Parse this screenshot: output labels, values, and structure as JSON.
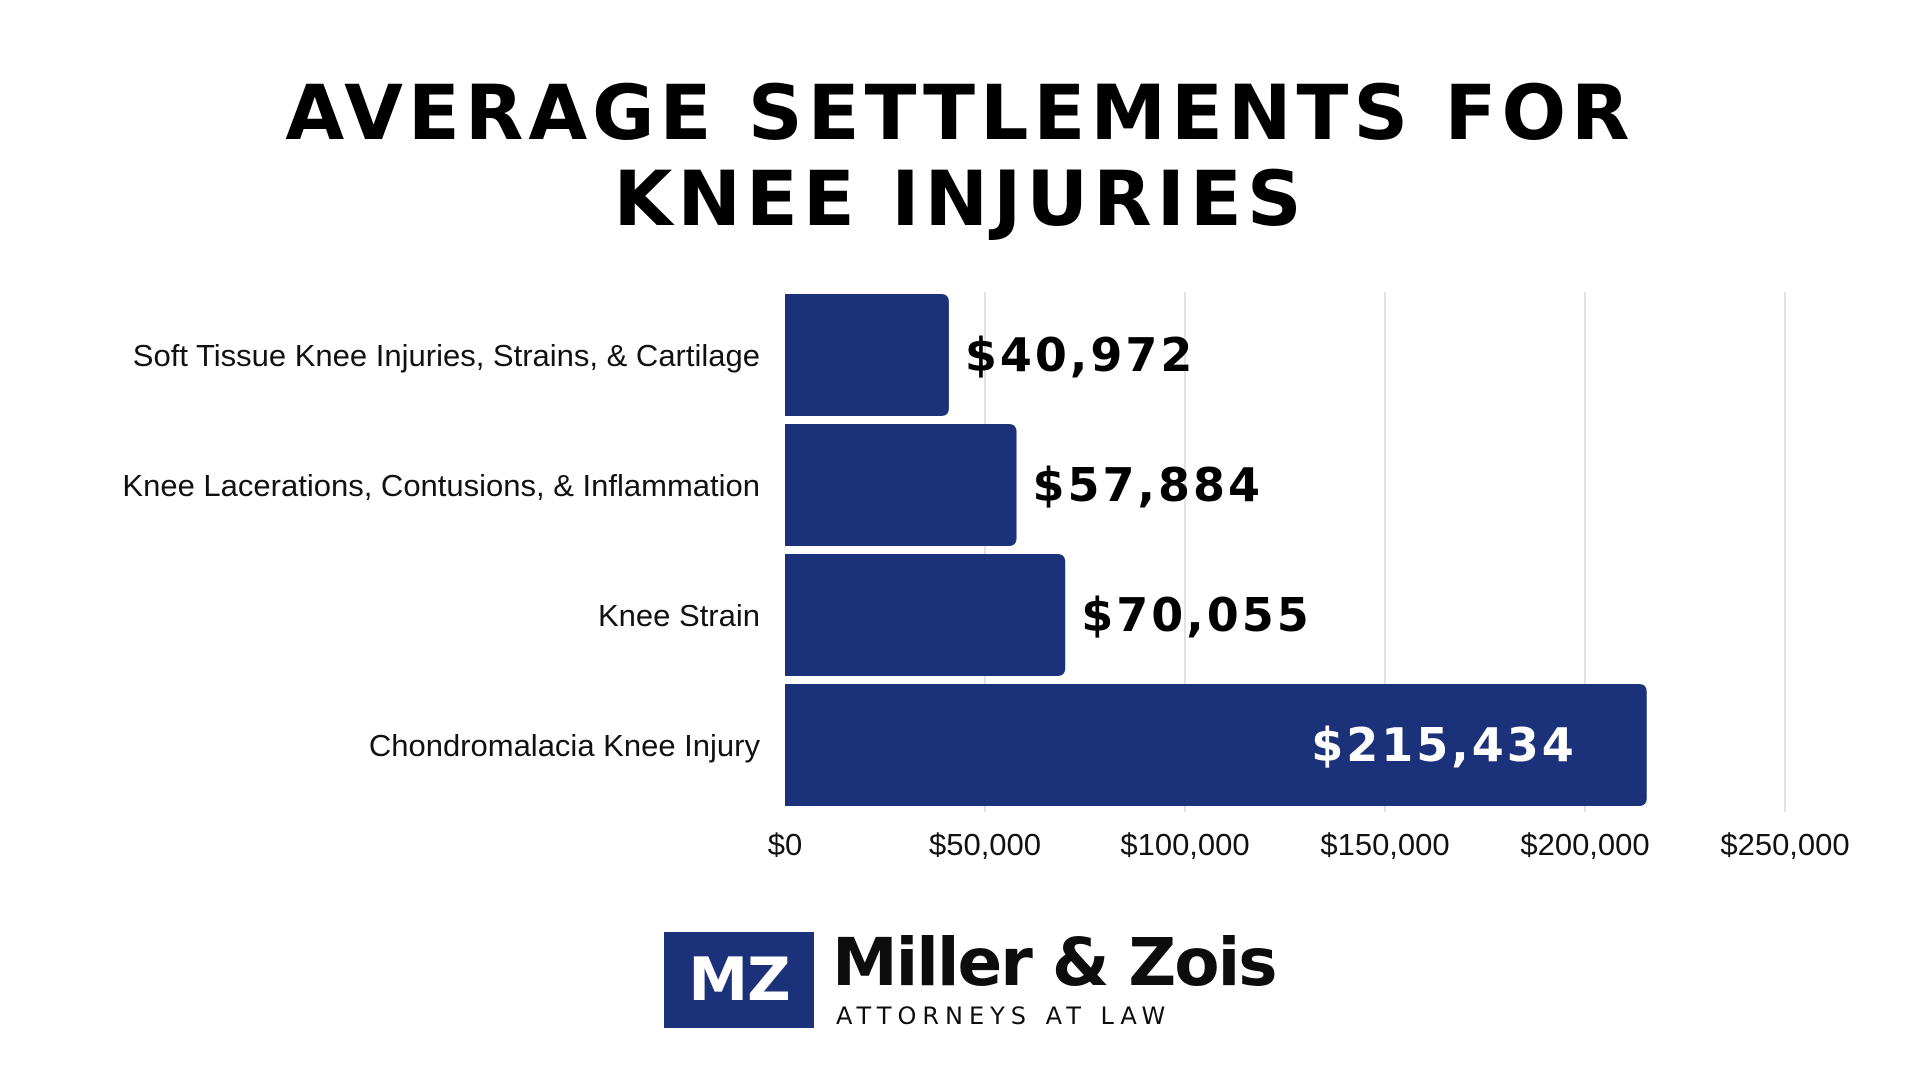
{
  "title_lines": [
    "AVERAGE SETTLEMENTS FOR",
    "KNEE INJURIES"
  ],
  "colors": {
    "bar": "#1b3179",
    "grid": "#d9d9d9",
    "text": "#111111",
    "inside_label": "#ffffff"
  },
  "chart_data": {
    "type": "bar",
    "orientation": "horizontal",
    "title": "AVERAGE SETTLEMENTS FOR KNEE INJURIES",
    "categories": [
      "Soft Tissue Knee Injuries, Strains, & Cartilage",
      "Knee Lacerations, Contusions, & Inflammation",
      "Knee Strain",
      "Chondromalacia Knee Injury"
    ],
    "values": [
      40972,
      57884,
      70055,
      215434
    ],
    "data_labels": [
      "$40,972",
      "$57,884",
      "$70,055",
      "$215,434"
    ],
    "xlim": [
      0,
      250000
    ],
    "x_ticks": [
      0,
      50000,
      100000,
      150000,
      200000,
      250000
    ],
    "x_tick_labels": [
      "$0",
      "$50,000",
      "$100,000",
      "$150,000",
      "$200,000",
      "$250,000"
    ],
    "xlabel": "",
    "ylabel": "",
    "grid": "vertical",
    "legend": "none"
  },
  "logo": {
    "mark": "MZ",
    "name": "Miller & Zois",
    "tagline": "ATTORNEYS AT LAW"
  }
}
